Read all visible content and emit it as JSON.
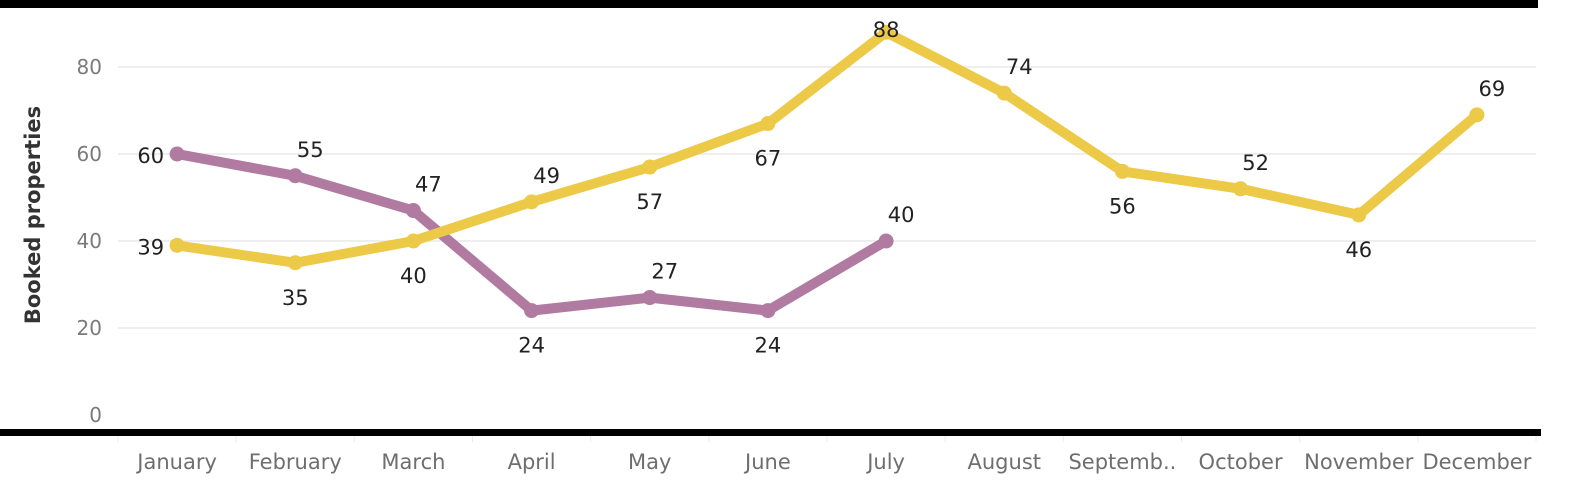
{
  "chart_data": {
    "type": "line",
    "title": "",
    "xlabel": "",
    "ylabel": "Booked properties",
    "ylim": [
      0,
      90
    ],
    "yticks": [
      0,
      20,
      40,
      60,
      80
    ],
    "grid": true,
    "legend": "none",
    "categories": [
      "January",
      "February",
      "March",
      "April",
      "May",
      "June",
      "July",
      "August",
      "Septemb..",
      "October",
      "November",
      "December"
    ],
    "series": [
      {
        "color": "#b07aa1",
        "values": [
          60,
          55,
          47,
          24,
          27,
          24,
          40,
          null,
          null,
          null,
          null,
          null
        ],
        "label_pos": [
          "left",
          "above",
          "above",
          "below",
          "above",
          "below",
          "above",
          null,
          null,
          null,
          null,
          null
        ]
      },
      {
        "color": "#edc948",
        "values": [
          39,
          35,
          40,
          49,
          57,
          67,
          88,
          74,
          56,
          52,
          46,
          69
        ],
        "label_pos": [
          "left",
          "below",
          "below",
          "above",
          "below",
          "below",
          "on",
          "above",
          "below",
          "above",
          "below",
          "above"
        ]
      }
    ]
  }
}
